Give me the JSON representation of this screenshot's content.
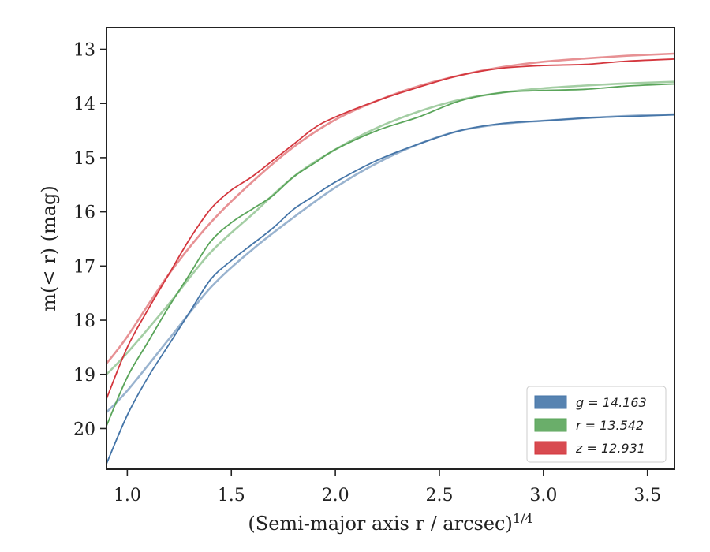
{
  "chart_data": {
    "type": "line",
    "xlabel": "(Semi-major axis r / arcsec)",
    "xlabel_sup": "1/4",
    "ylabel": "m(< r) (mag)",
    "xlim": [
      0.9,
      3.63
    ],
    "ylim": [
      20.75,
      12.6
    ],
    "y_inverted": true,
    "x_ticks": [
      1.0,
      1.5,
      2.0,
      2.5,
      3.0,
      3.5
    ],
    "x_tick_labels": [
      "1.0",
      "1.5",
      "2.0",
      "2.5",
      "3.0",
      "3.5"
    ],
    "y_ticks": [
      13,
      14,
      15,
      16,
      17,
      18,
      19,
      20
    ],
    "y_tick_labels": [
      "13",
      "14",
      "15",
      "16",
      "17",
      "18",
      "19",
      "20"
    ],
    "grid": false,
    "legend_position": "lower-right",
    "series": [
      {
        "name": "g = 14.163",
        "color": "#4575a8",
        "data": [
          [
            0.9,
            20.65
          ],
          [
            1.0,
            19.75
          ],
          [
            1.1,
            19.05
          ],
          [
            1.2,
            18.45
          ],
          [
            1.3,
            17.85
          ],
          [
            1.4,
            17.25
          ],
          [
            1.5,
            16.9
          ],
          [
            1.6,
            16.6
          ],
          [
            1.7,
            16.3
          ],
          [
            1.8,
            15.95
          ],
          [
            1.9,
            15.7
          ],
          [
            2.0,
            15.45
          ],
          [
            2.2,
            15.05
          ],
          [
            2.4,
            14.75
          ],
          [
            2.6,
            14.5
          ],
          [
            2.8,
            14.37
          ],
          [
            3.0,
            14.32
          ],
          [
            3.2,
            14.27
          ],
          [
            3.4,
            14.24
          ],
          [
            3.63,
            14.21
          ]
        ],
        "model": [
          [
            0.9,
            19.7
          ],
          [
            1.0,
            19.3
          ],
          [
            1.2,
            18.35
          ],
          [
            1.4,
            17.4
          ],
          [
            1.6,
            16.7
          ],
          [
            1.8,
            16.1
          ],
          [
            2.0,
            15.55
          ],
          [
            2.2,
            15.1
          ],
          [
            2.4,
            14.75
          ],
          [
            2.6,
            14.5
          ],
          [
            2.8,
            14.38
          ],
          [
            3.0,
            14.32
          ],
          [
            3.2,
            14.27
          ],
          [
            3.4,
            14.23
          ],
          [
            3.63,
            14.2
          ]
        ]
      },
      {
        "name": "r = 13.542",
        "color": "#5aa55a",
        "data": [
          [
            0.9,
            19.95
          ],
          [
            1.0,
            19.05
          ],
          [
            1.1,
            18.4
          ],
          [
            1.2,
            17.75
          ],
          [
            1.3,
            17.15
          ],
          [
            1.4,
            16.55
          ],
          [
            1.5,
            16.2
          ],
          [
            1.6,
            15.95
          ],
          [
            1.7,
            15.7
          ],
          [
            1.8,
            15.35
          ],
          [
            1.9,
            15.1
          ],
          [
            2.0,
            14.85
          ],
          [
            2.2,
            14.5
          ],
          [
            2.4,
            14.25
          ],
          [
            2.6,
            13.95
          ],
          [
            2.8,
            13.8
          ],
          [
            3.0,
            13.76
          ],
          [
            3.2,
            13.74
          ],
          [
            3.4,
            13.68
          ],
          [
            3.63,
            13.64
          ]
        ],
        "model": [
          [
            0.9,
            19.0
          ],
          [
            1.0,
            18.6
          ],
          [
            1.2,
            17.7
          ],
          [
            1.4,
            16.75
          ],
          [
            1.6,
            16.05
          ],
          [
            1.8,
            15.35
          ],
          [
            2.0,
            14.85
          ],
          [
            2.2,
            14.45
          ],
          [
            2.4,
            14.15
          ],
          [
            2.6,
            13.93
          ],
          [
            2.8,
            13.8
          ],
          [
            3.0,
            13.72
          ],
          [
            3.2,
            13.67
          ],
          [
            3.4,
            13.63
          ],
          [
            3.63,
            13.6
          ]
        ]
      },
      {
        "name": "z = 12.931",
        "color": "#d4363d",
        "data": [
          [
            0.9,
            19.45
          ],
          [
            1.0,
            18.5
          ],
          [
            1.1,
            17.8
          ],
          [
            1.2,
            17.15
          ],
          [
            1.3,
            16.5
          ],
          [
            1.4,
            15.95
          ],
          [
            1.5,
            15.6
          ],
          [
            1.6,
            15.35
          ],
          [
            1.7,
            15.05
          ],
          [
            1.8,
            14.75
          ],
          [
            1.9,
            14.45
          ],
          [
            2.0,
            14.25
          ],
          [
            2.2,
            13.95
          ],
          [
            2.4,
            13.7
          ],
          [
            2.6,
            13.48
          ],
          [
            2.8,
            13.35
          ],
          [
            3.0,
            13.3
          ],
          [
            3.2,
            13.28
          ],
          [
            3.4,
            13.22
          ],
          [
            3.63,
            13.18
          ]
        ],
        "model": [
          [
            0.9,
            18.8
          ],
          [
            1.0,
            18.3
          ],
          [
            1.2,
            17.15
          ],
          [
            1.4,
            16.2
          ],
          [
            1.6,
            15.45
          ],
          [
            1.8,
            14.8
          ],
          [
            2.0,
            14.3
          ],
          [
            2.2,
            13.95
          ],
          [
            2.4,
            13.68
          ],
          [
            2.6,
            13.48
          ],
          [
            2.8,
            13.33
          ],
          [
            3.0,
            13.23
          ],
          [
            3.2,
            13.17
          ],
          [
            3.4,
            13.12
          ],
          [
            3.63,
            13.08
          ]
        ]
      }
    ]
  }
}
